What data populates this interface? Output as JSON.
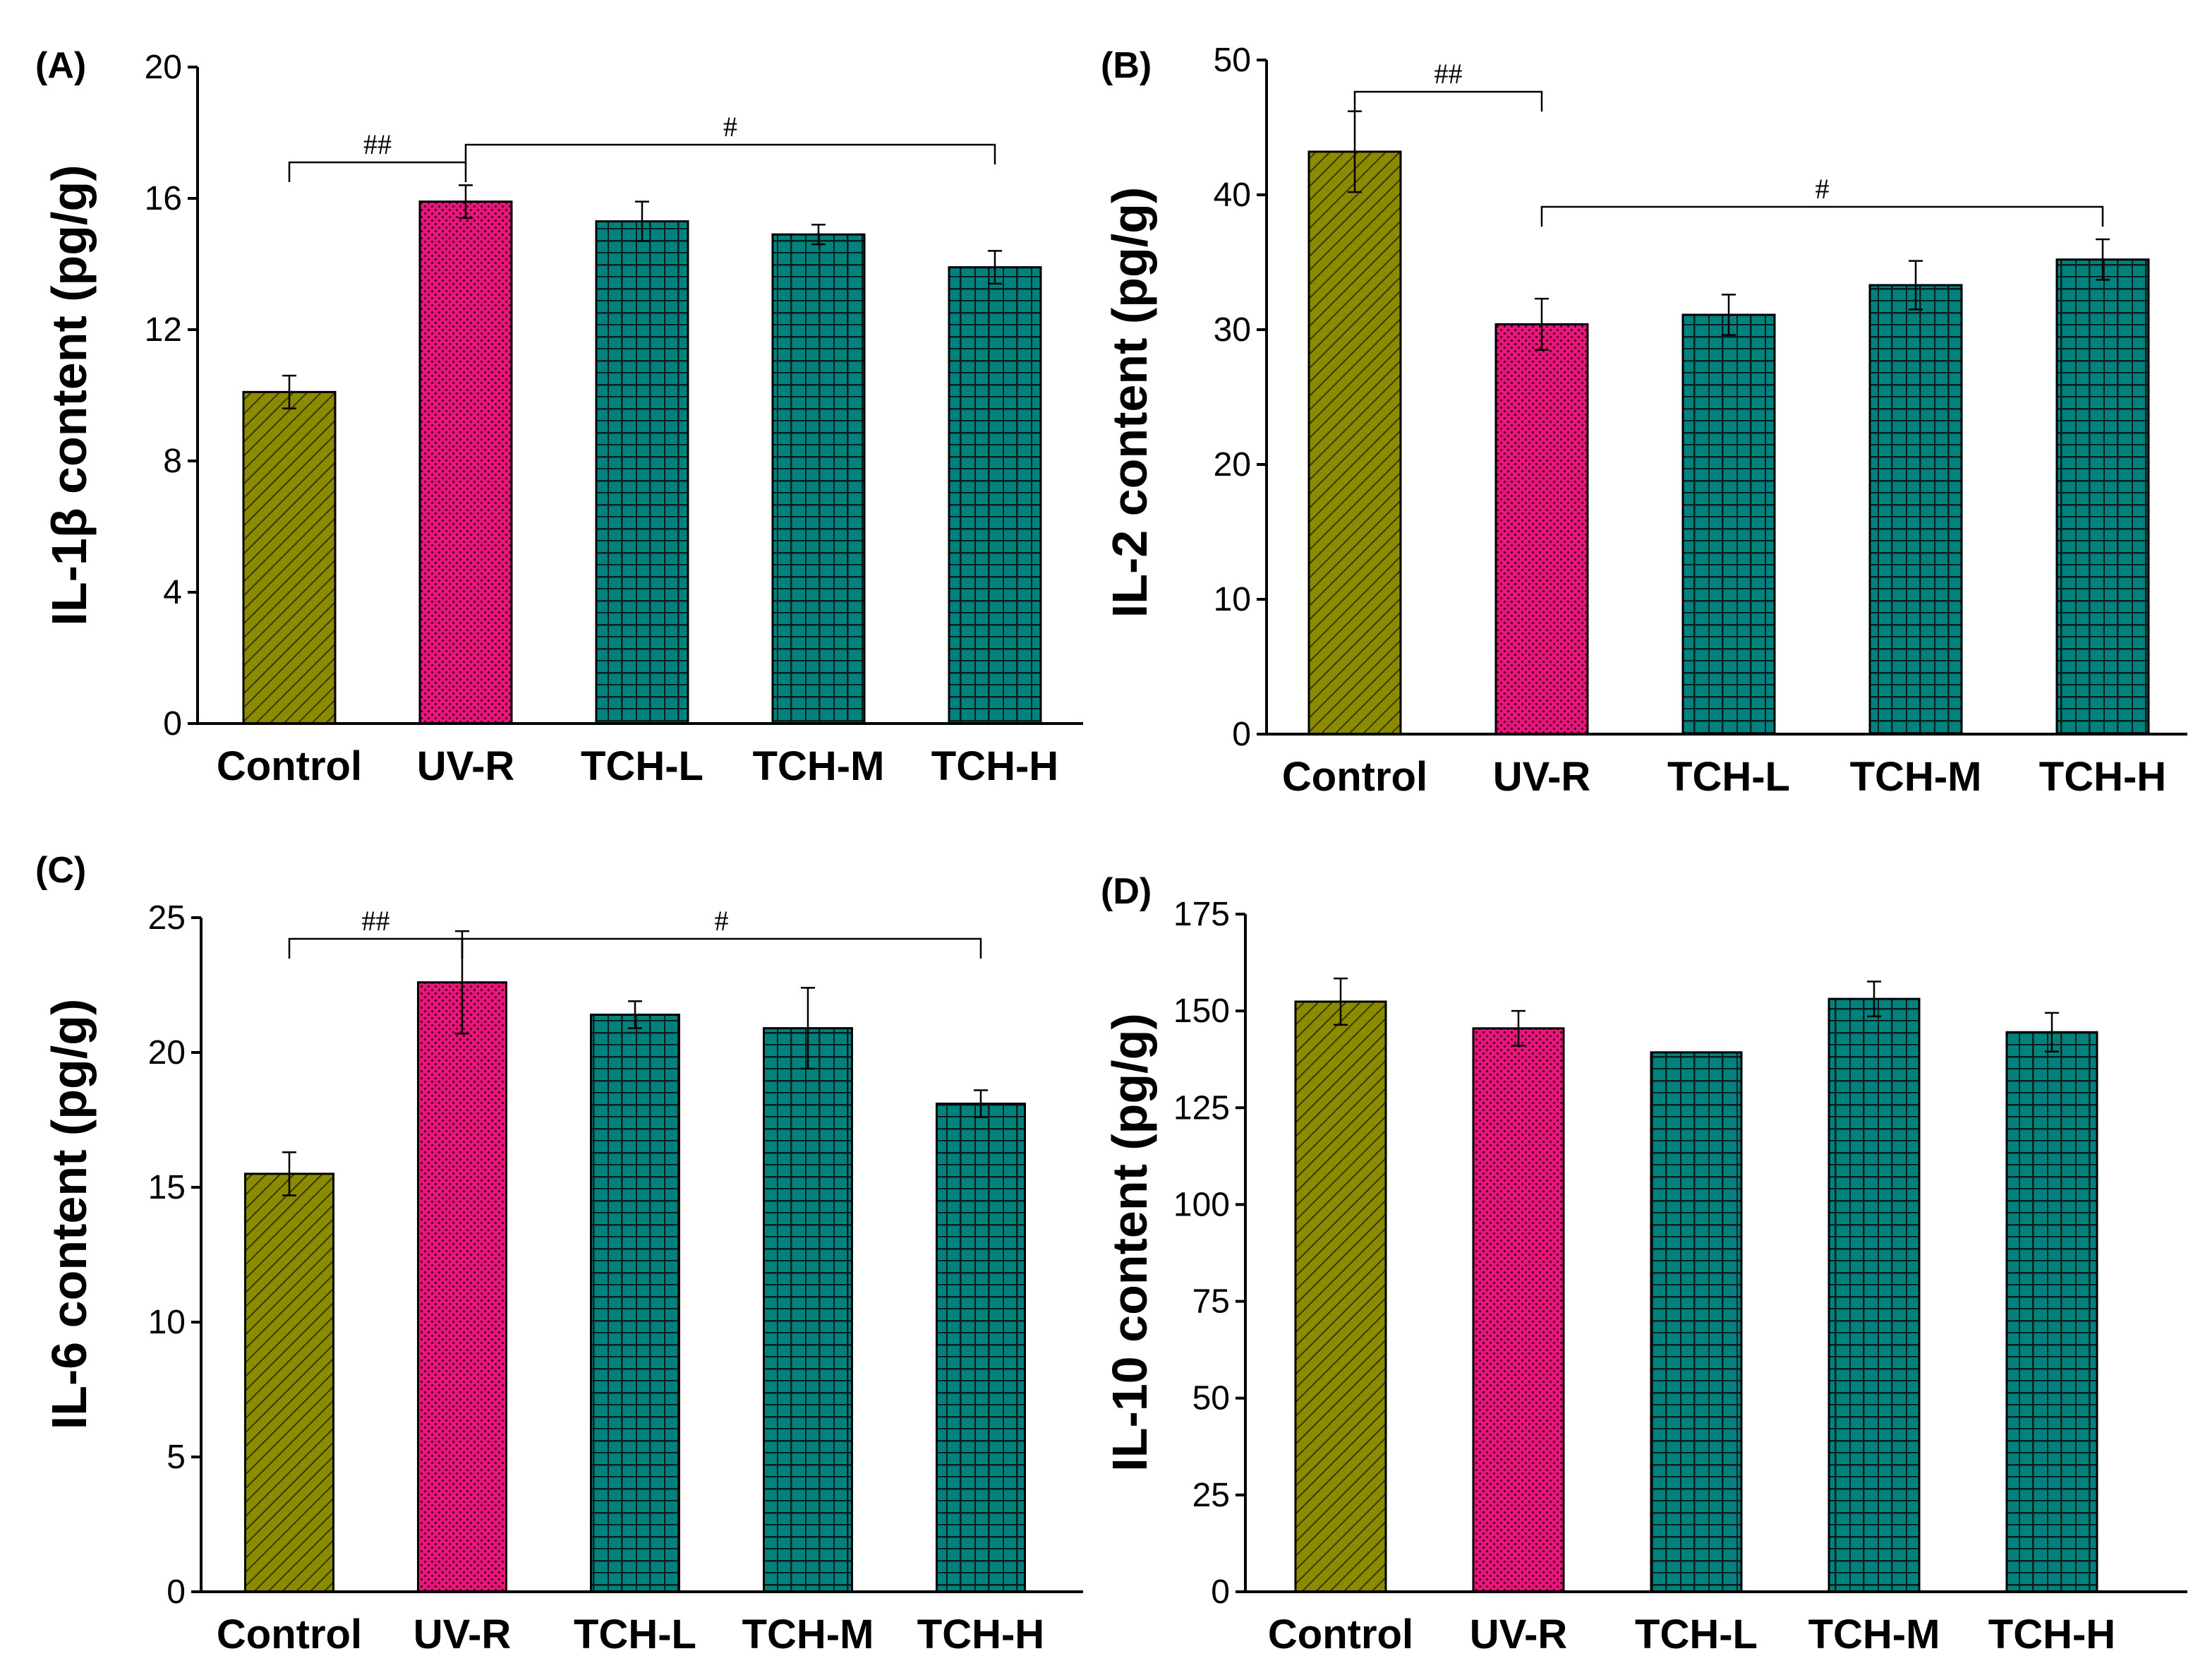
{
  "colors": {
    "control": "#8b8b00",
    "uvr": "#e8157a",
    "tch": "#00827f",
    "bracket": "#000000"
  },
  "chart_data": [
    {
      "type": "bar",
      "panel_label": "(A)",
      "ylabel": "IL-1β content (pg/g)",
      "categories": [
        "Control",
        "UV-R",
        "TCH-L",
        "TCH-M",
        "TCH-H"
      ],
      "values": [
        10.1,
        15.9,
        15.3,
        14.9,
        13.9
      ],
      "errors": [
        0.5,
        0.5,
        0.6,
        0.3,
        0.5
      ],
      "ylim": [
        0,
        20
      ],
      "yticks": [
        "0",
        "4",
        "8",
        "12",
        "16",
        "20"
      ],
      "annotations": [
        {
          "text": "##",
          "from": 0,
          "to": 1
        },
        {
          "text": "#",
          "from": 1,
          "to": 4
        }
      ]
    },
    {
      "type": "bar",
      "panel_label": "(B)",
      "ylabel": "IL-2 content (pg/g)",
      "categories": [
        "Control",
        "UV-R",
        "TCH-L",
        "TCH-M",
        "TCH-H"
      ],
      "values": [
        43.2,
        30.4,
        31.1,
        33.3,
        35.2
      ],
      "errors": [
        3.0,
        1.9,
        1.5,
        1.8,
        1.5
      ],
      "ylim": [
        0,
        50
      ],
      "yticks": [
        "0",
        "10",
        "20",
        "30",
        "40",
        "50"
      ],
      "annotations": [
        {
          "text": "##",
          "from": 0,
          "to": 1
        },
        {
          "text": "#",
          "from": 1,
          "to": 4
        }
      ]
    },
    {
      "type": "bar",
      "panel_label": "(C)",
      "ylabel": "IL-6 content (pg/g)",
      "categories": [
        "Control",
        "UV-R",
        "TCH-L",
        "TCH-M",
        "TCH-H"
      ],
      "values": [
        15.5,
        22.6,
        21.4,
        20.9,
        18.1
      ],
      "errors": [
        0.8,
        1.9,
        0.5,
        1.5,
        0.5
      ],
      "ylim": [
        0,
        25
      ],
      "yticks": [
        "0",
        "5",
        "10",
        "15",
        "20",
        "25"
      ],
      "annotations": [
        {
          "text": "##",
          "from": 0,
          "to": 1
        },
        {
          "text": "#",
          "from": 1,
          "to": 4
        }
      ]
    },
    {
      "type": "bar",
      "panel_label": "(D)",
      "ylabel": "IL-10 content (pg/g)",
      "categories": [
        "Control",
        "UV-R",
        "TCH-L",
        "TCH-M",
        "TCH-H"
      ],
      "values": [
        152.4,
        145.5,
        139.3,
        153.1,
        144.5
      ],
      "errors": [
        6.0,
        4.5,
        0.0,
        4.5,
        5.0
      ],
      "ylim": [
        0,
        175
      ],
      "yticks": [
        "0",
        "25",
        "50",
        "75",
        "100",
        "125",
        "150",
        "175"
      ],
      "annotations": []
    }
  ]
}
